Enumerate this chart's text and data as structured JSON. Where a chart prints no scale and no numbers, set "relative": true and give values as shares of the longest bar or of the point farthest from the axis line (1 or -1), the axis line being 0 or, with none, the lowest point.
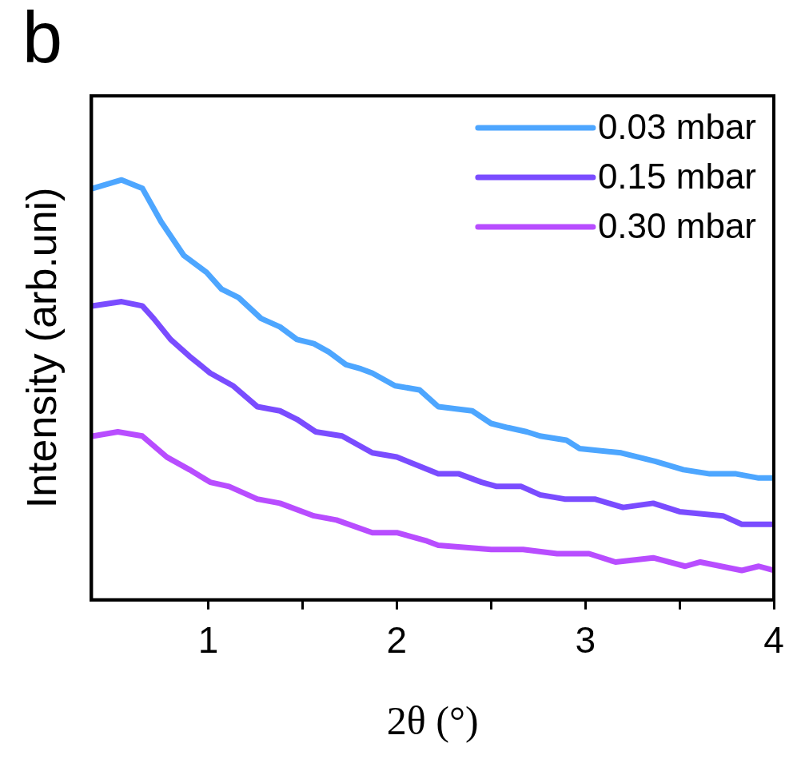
{
  "chart_data": {
    "type": "line",
    "title": "b",
    "xlabel": "2θ (°)",
    "ylabel": "Intensity (arb.uni)",
    "relative": true,
    "xlim": [
      0.38,
      4
    ],
    "xticks": [
      1,
      {
        "value": 1.5,
        "label": null
      },
      2,
      {
        "value": 2.5,
        "label": null
      },
      3,
      {
        "value": 3.5,
        "label": null
      },
      4
    ],
    "grid": false,
    "legend": "top right",
    "marker": "none",
    "line_style": "solid",
    "series": [
      {
        "name": "0.03 mbar",
        "color": "#4da6ff",
        "x": [
          0.39,
          0.54,
          0.65,
          0.75,
          0.87,
          0.99,
          1.07,
          1.16,
          1.28,
          1.38,
          1.47,
          1.56,
          1.64,
          1.73,
          1.81,
          1.87,
          1.99,
          2.12,
          2.22,
          2.4,
          2.5,
          2.59,
          2.69,
          2.76,
          2.9,
          2.97,
          3.19,
          3.37,
          3.52,
          3.66,
          3.8,
          3.92,
          4
        ],
        "values": [
          0.98,
          1,
          0.98,
          0.9,
          0.82,
          0.78,
          0.74,
          0.72,
          0.67,
          0.65,
          0.62,
          0.61,
          0.59,
          0.56,
          0.55,
          0.54,
          0.51,
          0.5,
          0.46,
          0.45,
          0.42,
          0.41,
          0.4,
          0.39,
          0.38,
          0.36,
          0.35,
          0.33,
          0.31,
          0.3,
          0.3,
          0.29,
          0.29
        ]
      },
      {
        "name": "0.15 mbar",
        "color": "#7a4cff",
        "x": [
          0.39,
          0.54,
          0.65,
          0.71,
          0.8,
          0.9,
          1.01,
          1.13,
          1.26,
          1.38,
          1.47,
          1.57,
          1.71,
          1.87,
          2,
          2.11,
          2.22,
          2.33,
          2.45,
          2.53,
          2.66,
          2.76,
          2.89,
          3.05,
          3.2,
          3.36,
          3.5,
          3.73,
          3.83,
          3.95,
          4
        ],
        "values": [
          0.7,
          0.71,
          0.7,
          0.67,
          0.62,
          0.58,
          0.54,
          0.51,
          0.46,
          0.45,
          0.43,
          0.4,
          0.39,
          0.35,
          0.34,
          0.32,
          0.3,
          0.3,
          0.28,
          0.27,
          0.27,
          0.25,
          0.24,
          0.24,
          0.22,
          0.23,
          0.21,
          0.2,
          0.18,
          0.18,
          0.18
        ]
      },
      {
        "name": "0.30 mbar",
        "color": "#b84dff",
        "x": [
          0.39,
          0.52,
          0.65,
          0.78,
          0.9,
          1.01,
          1.11,
          1.26,
          1.38,
          1.56,
          1.68,
          1.87,
          2,
          2.16,
          2.22,
          2.5,
          2.67,
          2.85,
          3.02,
          3.16,
          3.36,
          3.53,
          3.61,
          3.83,
          3.92,
          4
        ],
        "values": [
          0.39,
          0.4,
          0.39,
          0.34,
          0.31,
          0.28,
          0.27,
          0.24,
          0.23,
          0.2,
          0.19,
          0.16,
          0.16,
          0.14,
          0.13,
          0.12,
          0.12,
          0.11,
          0.11,
          0.09,
          0.1,
          0.08,
          0.09,
          0.07,
          0.08,
          0.07
        ]
      }
    ]
  }
}
